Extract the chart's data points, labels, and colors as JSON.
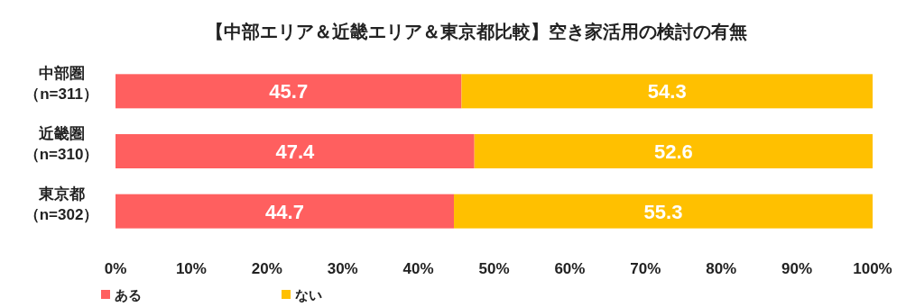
{
  "chart_data": {
    "type": "bar",
    "orientation": "horizontal",
    "stacked": true,
    "title": "【中部エリア＆近畿エリア＆東京都比較】空き家活用の検討の有無",
    "categories": [
      "中部圏（n=311）",
      "近畿圏（n=310）",
      "東京都（n=302）"
    ],
    "series": [
      {
        "name": "ある",
        "color": "#ff5f5f",
        "values": [
          45.7,
          47.4,
          44.7
        ]
      },
      {
        "name": "ない",
        "color": "#ffc000",
        "values": [
          54.3,
          52.6,
          55.3
        ]
      }
    ],
    "xlim": [
      0,
      100
    ],
    "xticks": [
      {
        "value": 0,
        "label": "0%"
      },
      {
        "value": 10,
        "label": "10%"
      },
      {
        "value": 20,
        "label": "20%"
      },
      {
        "value": 30,
        "label": "30%"
      },
      {
        "value": 40,
        "label": "40%"
      },
      {
        "value": 50,
        "label": "50%"
      },
      {
        "value": 60,
        "label": "60%"
      },
      {
        "value": 70,
        "label": "70%"
      },
      {
        "value": 80,
        "label": "80%"
      },
      {
        "value": 90,
        "label": "90%"
      },
      {
        "value": 100,
        "label": "100%"
      }
    ],
    "data_labels": true,
    "legend": "bottom left"
  }
}
